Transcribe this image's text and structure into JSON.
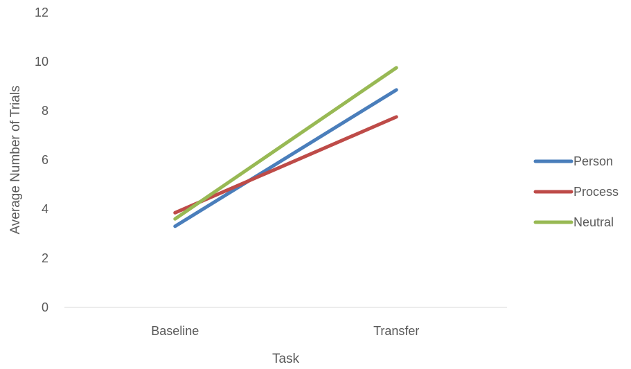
{
  "chart_data": {
    "type": "line",
    "categories": [
      "Baseline",
      "Transfer"
    ],
    "series": [
      {
        "name": "Person",
        "color": "#4a7ebb",
        "values": [
          3.3,
          8.85
        ]
      },
      {
        "name": "Process",
        "color": "#be4b48",
        "values": [
          3.85,
          7.75
        ]
      },
      {
        "name": "Neutral",
        "color": "#98b954",
        "values": [
          3.6,
          9.75
        ]
      }
    ],
    "xlabel": "Task",
    "ylabel": "Average Number of Trials",
    "ylim": [
      0,
      12
    ],
    "yticks": [
      0,
      2,
      4,
      6,
      8,
      10,
      12
    ],
    "grid": false,
    "legend_position": "right"
  }
}
